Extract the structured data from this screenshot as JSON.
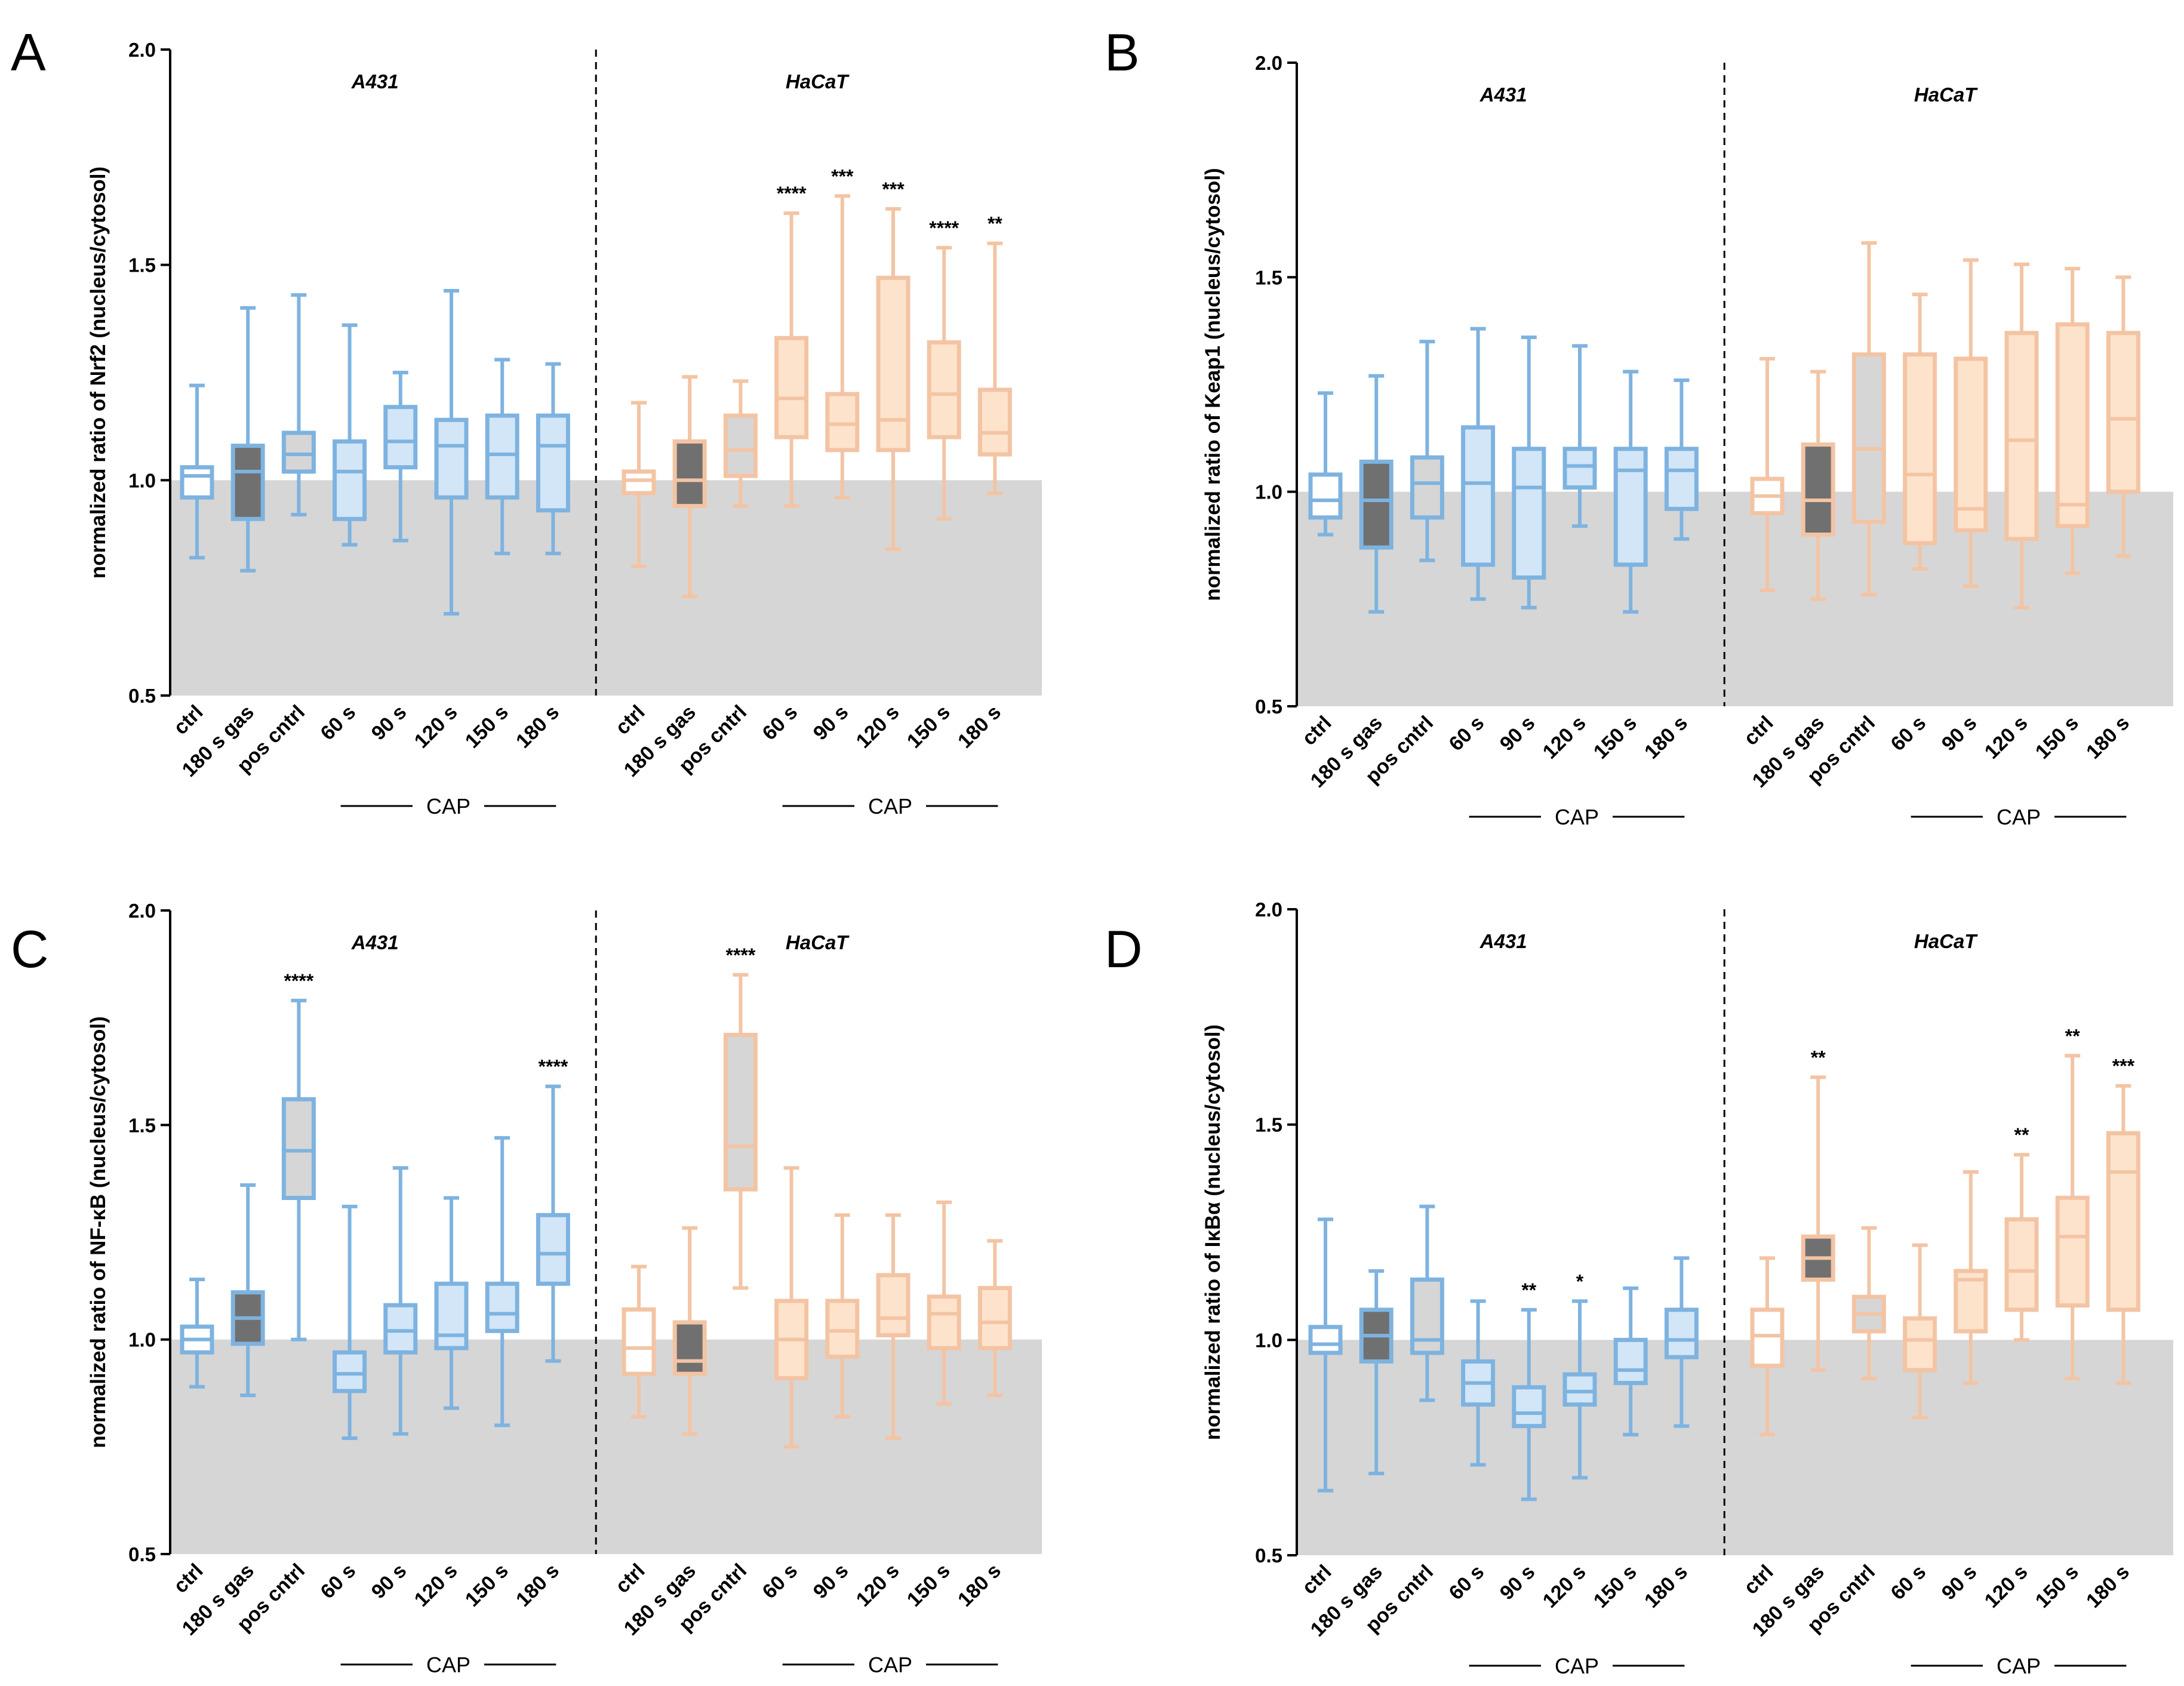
{
  "figure": {
    "colors": {
      "a431_stroke": "#7EB3E0",
      "a431_fill": "#D2E6F7",
      "hacat_stroke": "#F3C4A4",
      "hacat_fill": "#FDE3CB",
      "gas_fill": "#707070",
      "pos_fill": "#D6D6D6",
      "ctrl_fill": "#FFFFFF",
      "below_baseline": "#D6D6D6"
    },
    "categories": [
      "ctrl",
      "180 s gas",
      "pos cntrl",
      "60 s",
      "90 s",
      "120 s",
      "150 s",
      "180 s"
    ],
    "cap_label": "CAP",
    "cell_lines": [
      "A431",
      "HaCaT"
    ]
  },
  "chart_data": [
    {
      "panel": "A",
      "type": "boxplot",
      "ylabel": "normalized ratio of Nrf2 (nucleus/cytosol)",
      "ylim": [
        0.5,
        2.0
      ],
      "yticks": [
        "0.5",
        "1.0",
        "1.5",
        "2.0"
      ],
      "baseline": 1.0,
      "groups": [
        {
          "name": "A431",
          "boxes": [
            {
              "category": "ctrl",
              "min": 0.82,
              "q1": 0.96,
              "median": 1.01,
              "q3": 1.03,
              "max": 1.22,
              "sig": ""
            },
            {
              "category": "180 s gas",
              "min": 0.79,
              "q1": 0.91,
              "median": 1.02,
              "q3": 1.08,
              "max": 1.4,
              "sig": ""
            },
            {
              "category": "pos cntrl",
              "min": 0.92,
              "q1": 1.02,
              "median": 1.06,
              "q3": 1.11,
              "max": 1.43,
              "sig": ""
            },
            {
              "category": "60 s",
              "min": 0.85,
              "q1": 0.91,
              "median": 1.02,
              "q3": 1.09,
              "max": 1.36,
              "sig": ""
            },
            {
              "category": "90 s",
              "min": 0.86,
              "q1": 1.03,
              "median": 1.09,
              "q3": 1.17,
              "max": 1.25,
              "sig": ""
            },
            {
              "category": "120 s",
              "min": 0.69,
              "q1": 0.96,
              "median": 1.08,
              "q3": 1.14,
              "max": 1.44,
              "sig": ""
            },
            {
              "category": "150 s",
              "min": 0.83,
              "q1": 0.96,
              "median": 1.06,
              "q3": 1.15,
              "max": 1.28,
              "sig": ""
            },
            {
              "category": "180 s",
              "min": 0.83,
              "q1": 0.93,
              "median": 1.08,
              "q3": 1.15,
              "max": 1.27,
              "sig": ""
            }
          ]
        },
        {
          "name": "HaCaT",
          "boxes": [
            {
              "category": "ctrl",
              "min": 0.8,
              "q1": 0.97,
              "median": 1.0,
              "q3": 1.02,
              "max": 1.18,
              "sig": ""
            },
            {
              "category": "180 s gas",
              "min": 0.73,
              "q1": 0.94,
              "median": 1.0,
              "q3": 1.09,
              "max": 1.24,
              "sig": ""
            },
            {
              "category": "pos cntrl",
              "min": 0.94,
              "q1": 1.01,
              "median": 1.07,
              "q3": 1.15,
              "max": 1.23,
              "sig": ""
            },
            {
              "category": "60 s",
              "min": 0.94,
              "q1": 1.1,
              "median": 1.19,
              "q3": 1.33,
              "max": 1.62,
              "sig": "****"
            },
            {
              "category": "90 s",
              "min": 0.96,
              "q1": 1.07,
              "median": 1.13,
              "q3": 1.2,
              "max": 1.66,
              "sig": "***"
            },
            {
              "category": "120 s",
              "min": 0.84,
              "q1": 1.07,
              "median": 1.14,
              "q3": 1.47,
              "max": 1.63,
              "sig": "***"
            },
            {
              "category": "150 s",
              "min": 0.91,
              "q1": 1.1,
              "median": 1.2,
              "q3": 1.32,
              "max": 1.54,
              "sig": "****"
            },
            {
              "category": "180 s",
              "min": 0.97,
              "q1": 1.06,
              "median": 1.11,
              "q3": 1.21,
              "max": 1.55,
              "sig": "**"
            }
          ]
        }
      ]
    },
    {
      "panel": "B",
      "type": "boxplot",
      "ylabel": "normalized ratio of Keap1 (nucleus/cytosol)",
      "ylim": [
        0.5,
        2.0
      ],
      "yticks": [
        "0.5",
        "1.0",
        "1.5",
        "2.0"
      ],
      "baseline": 1.0,
      "groups": [
        {
          "name": "A431",
          "boxes": [
            {
              "category": "ctrl",
              "min": 0.9,
              "q1": 0.94,
              "median": 0.98,
              "q3": 1.04,
              "max": 1.23,
              "sig": ""
            },
            {
              "category": "180 s gas",
              "min": 0.72,
              "q1": 0.87,
              "median": 0.98,
              "q3": 1.07,
              "max": 1.27,
              "sig": ""
            },
            {
              "category": "pos cntrl",
              "min": 0.84,
              "q1": 0.94,
              "median": 1.02,
              "q3": 1.08,
              "max": 1.35,
              "sig": ""
            },
            {
              "category": "60 s",
              "min": 0.75,
              "q1": 0.83,
              "median": 1.02,
              "q3": 1.15,
              "max": 1.38,
              "sig": ""
            },
            {
              "category": "90 s",
              "min": 0.73,
              "q1": 0.8,
              "median": 1.01,
              "q3": 1.1,
              "max": 1.36,
              "sig": ""
            },
            {
              "category": "120 s",
              "min": 0.92,
              "q1": 1.01,
              "median": 1.06,
              "q3": 1.1,
              "max": 1.34,
              "sig": ""
            },
            {
              "category": "150 s",
              "min": 0.72,
              "q1": 0.83,
              "median": 1.05,
              "q3": 1.1,
              "max": 1.28,
              "sig": ""
            },
            {
              "category": "180 s",
              "min": 0.89,
              "q1": 0.96,
              "median": 1.05,
              "q3": 1.1,
              "max": 1.26,
              "sig": ""
            }
          ]
        },
        {
          "name": "HaCaT",
          "boxes": [
            {
              "category": "ctrl",
              "min": 0.77,
              "q1": 0.95,
              "median": 0.99,
              "q3": 1.03,
              "max": 1.31,
              "sig": ""
            },
            {
              "category": "180 s gas",
              "min": 0.75,
              "q1": 0.9,
              "median": 0.98,
              "q3": 1.11,
              "max": 1.28,
              "sig": ""
            },
            {
              "category": "pos cntrl",
              "min": 0.76,
              "q1": 0.93,
              "median": 1.1,
              "q3": 1.32,
              "max": 1.58,
              "sig": ""
            },
            {
              "category": "60 s",
              "min": 0.82,
              "q1": 0.88,
              "median": 1.04,
              "q3": 1.32,
              "max": 1.46,
              "sig": ""
            },
            {
              "category": "90 s",
              "min": 0.78,
              "q1": 0.91,
              "median": 0.96,
              "q3": 1.31,
              "max": 1.54,
              "sig": ""
            },
            {
              "category": "120 s",
              "min": 0.73,
              "q1": 0.89,
              "median": 1.12,
              "q3": 1.37,
              "max": 1.53,
              "sig": ""
            },
            {
              "category": "150 s",
              "min": 0.81,
              "q1": 0.92,
              "median": 0.97,
              "q3": 1.39,
              "max": 1.52,
              "sig": ""
            },
            {
              "category": "180 s",
              "min": 0.85,
              "q1": 1.0,
              "median": 1.17,
              "q3": 1.37,
              "max": 1.5,
              "sig": ""
            }
          ]
        }
      ]
    },
    {
      "panel": "C",
      "type": "boxplot",
      "ylabel": "normalized ratio of NF-κB (nucleus/cytosol)",
      "ylim": [
        0.5,
        2.0
      ],
      "yticks": [
        "0.5",
        "1.0",
        "1.5",
        "2.0"
      ],
      "baseline": 1.0,
      "groups": [
        {
          "name": "A431",
          "boxes": [
            {
              "category": "ctrl",
              "min": 0.89,
              "q1": 0.97,
              "median": 1.0,
              "q3": 1.03,
              "max": 1.14,
              "sig": ""
            },
            {
              "category": "180 s gas",
              "min": 0.87,
              "q1": 0.99,
              "median": 1.05,
              "q3": 1.11,
              "max": 1.36,
              "sig": ""
            },
            {
              "category": "pos cntrl",
              "min": 1.0,
              "q1": 1.33,
              "median": 1.44,
              "q3": 1.56,
              "max": 1.79,
              "sig": "****"
            },
            {
              "category": "60 s",
              "min": 0.77,
              "q1": 0.88,
              "median": 0.92,
              "q3": 0.97,
              "max": 1.31,
              "sig": ""
            },
            {
              "category": "90 s",
              "min": 0.78,
              "q1": 0.97,
              "median": 1.02,
              "q3": 1.08,
              "max": 1.4,
              "sig": ""
            },
            {
              "category": "120 s",
              "min": 0.84,
              "q1": 0.98,
              "median": 1.01,
              "q3": 1.13,
              "max": 1.33,
              "sig": ""
            },
            {
              "category": "150 s",
              "min": 0.8,
              "q1": 1.02,
              "median": 1.06,
              "q3": 1.13,
              "max": 1.47,
              "sig": ""
            },
            {
              "category": "180 s",
              "min": 0.95,
              "q1": 1.13,
              "median": 1.2,
              "q3": 1.29,
              "max": 1.59,
              "sig": "****"
            }
          ]
        },
        {
          "name": "HaCaT",
          "boxes": [
            {
              "category": "ctrl",
              "min": 0.82,
              "q1": 0.92,
              "median": 0.98,
              "q3": 1.07,
              "max": 1.17,
              "sig": ""
            },
            {
              "category": "180 s gas",
              "min": 0.78,
              "q1": 0.92,
              "median": 0.95,
              "q3": 1.04,
              "max": 1.26,
              "sig": ""
            },
            {
              "category": "pos cntrl",
              "min": 1.12,
              "q1": 1.35,
              "median": 1.45,
              "q3": 1.71,
              "max": 1.85,
              "sig": "****"
            },
            {
              "category": "60 s",
              "min": 0.75,
              "q1": 0.91,
              "median": 1.0,
              "q3": 1.09,
              "max": 1.4,
              "sig": ""
            },
            {
              "category": "90 s",
              "min": 0.82,
              "q1": 0.96,
              "median": 1.02,
              "q3": 1.09,
              "max": 1.29,
              "sig": ""
            },
            {
              "category": "120 s",
              "min": 0.77,
              "q1": 1.01,
              "median": 1.05,
              "q3": 1.15,
              "max": 1.29,
              "sig": ""
            },
            {
              "category": "150 s",
              "min": 0.85,
              "q1": 0.98,
              "median": 1.06,
              "q3": 1.1,
              "max": 1.32,
              "sig": ""
            },
            {
              "category": "180 s",
              "min": 0.87,
              "q1": 0.98,
              "median": 1.04,
              "q3": 1.12,
              "max": 1.23,
              "sig": ""
            }
          ]
        }
      ]
    },
    {
      "panel": "D",
      "type": "boxplot",
      "ylabel": "normalized ratio of IκBα (nucleus/cytosol)",
      "ylim": [
        0.5,
        2.0
      ],
      "yticks": [
        "0.5",
        "1.0",
        "1.5",
        "2.0"
      ],
      "baseline": 1.0,
      "groups": [
        {
          "name": "A431",
          "boxes": [
            {
              "category": "ctrl",
              "min": 0.65,
              "q1": 0.97,
              "median": 0.99,
              "q3": 1.03,
              "max": 1.28,
              "sig": ""
            },
            {
              "category": "180 s gas",
              "min": 0.69,
              "q1": 0.95,
              "median": 1.01,
              "q3": 1.07,
              "max": 1.16,
              "sig": ""
            },
            {
              "category": "pos cntrl",
              "min": 0.86,
              "q1": 0.97,
              "median": 1.0,
              "q3": 1.14,
              "max": 1.31,
              "sig": ""
            },
            {
              "category": "60 s",
              "min": 0.71,
              "q1": 0.85,
              "median": 0.9,
              "q3": 0.95,
              "max": 1.09,
              "sig": ""
            },
            {
              "category": "90 s",
              "min": 0.63,
              "q1": 0.8,
              "median": 0.83,
              "q3": 0.89,
              "max": 1.07,
              "sig": "**"
            },
            {
              "category": "120 s",
              "min": 0.68,
              "q1": 0.85,
              "median": 0.88,
              "q3": 0.92,
              "max": 1.09,
              "sig": "*"
            },
            {
              "category": "150 s",
              "min": 0.78,
              "q1": 0.9,
              "median": 0.93,
              "q3": 1.0,
              "max": 1.12,
              "sig": ""
            },
            {
              "category": "180 s",
              "min": 0.8,
              "q1": 0.96,
              "median": 1.0,
              "q3": 1.07,
              "max": 1.19,
              "sig": ""
            }
          ]
        },
        {
          "name": "HaCaT",
          "boxes": [
            {
              "category": "ctrl",
              "min": 0.78,
              "q1": 0.94,
              "median": 1.01,
              "q3": 1.07,
              "max": 1.19,
              "sig": ""
            },
            {
              "category": "180 s gas",
              "min": 0.93,
              "q1": 1.14,
              "median": 1.19,
              "q3": 1.24,
              "max": 1.61,
              "sig": "**"
            },
            {
              "category": "pos cntrl",
              "min": 0.91,
              "q1": 1.02,
              "median": 1.06,
              "q3": 1.1,
              "max": 1.26,
              "sig": ""
            },
            {
              "category": "60 s",
              "min": 0.82,
              "q1": 0.93,
              "median": 1.0,
              "q3": 1.05,
              "max": 1.22,
              "sig": ""
            },
            {
              "category": "90 s",
              "min": 0.9,
              "q1": 1.02,
              "median": 1.14,
              "q3": 1.16,
              "max": 1.39,
              "sig": ""
            },
            {
              "category": "120 s",
              "min": 1.0,
              "q1": 1.07,
              "median": 1.16,
              "q3": 1.28,
              "max": 1.43,
              "sig": "**"
            },
            {
              "category": "150 s",
              "min": 0.91,
              "q1": 1.08,
              "median": 1.24,
              "q3": 1.33,
              "max": 1.66,
              "sig": "**"
            },
            {
              "category": "180 s",
              "min": 0.9,
              "q1": 1.07,
              "median": 1.39,
              "q3": 1.48,
              "max": 1.59,
              "sig": "***"
            }
          ]
        }
      ]
    }
  ]
}
